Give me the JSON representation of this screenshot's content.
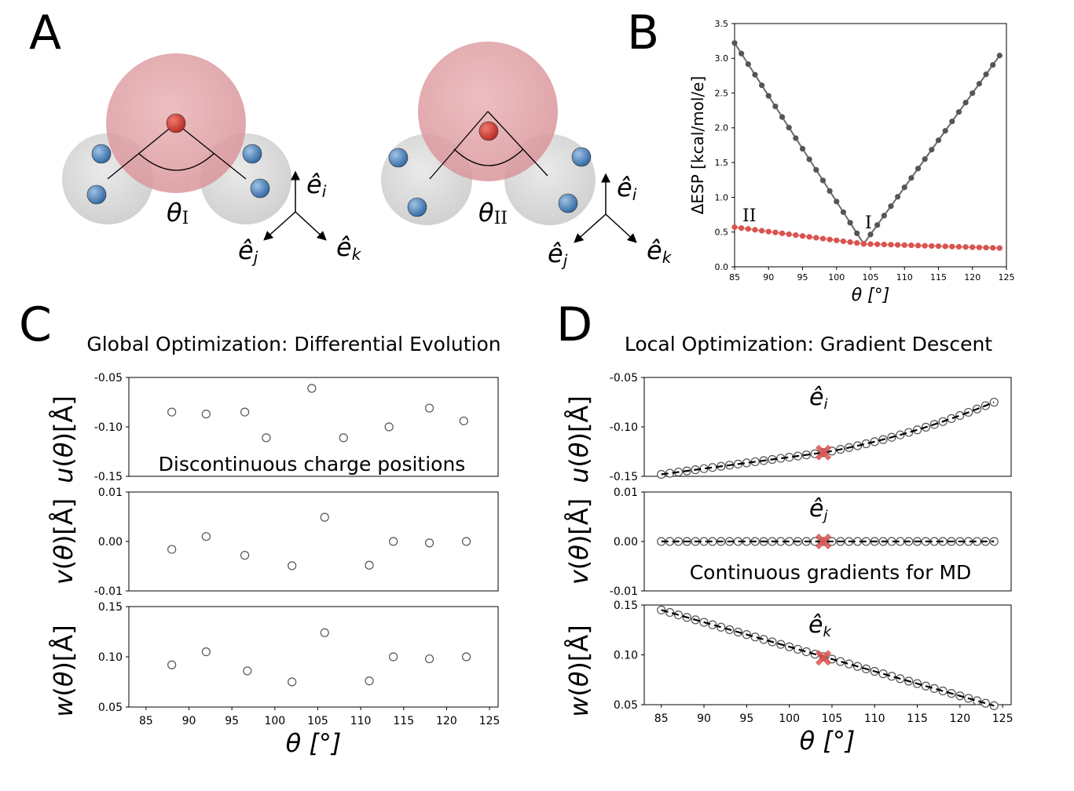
{
  "panels": {
    "a": {
      "letter": "A"
    },
    "b": {
      "letter": "B"
    },
    "c": {
      "letter": "C"
    },
    "d": {
      "letter": "D"
    }
  },
  "molecules": {
    "left_label": "θ",
    "left_sub": "I",
    "right_label": "θ",
    "right_sub": "II",
    "axis_i": "ê",
    "axis_i_sub": "i",
    "axis_j": "ê",
    "axis_j_sub": "j",
    "axis_k": "ê",
    "axis_k_sub": "k",
    "colors": {
      "oxygen": "#e3a2a6",
      "hydrogen": "#d9d9d9",
      "site_red": "#c8332c",
      "site_blue": "#3f78b4"
    }
  },
  "panel_b": {
    "ylabel": "ΔESP [kcal/mol/e]",
    "xlabel": "θ [°]",
    "label_I": "I",
    "label_II": "II"
  },
  "panel_c": {
    "title": "Global Optimization: Differential Evolution",
    "annotation": "Discontinuous charge positions",
    "xlabel": "θ [°]",
    "ylabel_u": "u(θ)[Å]",
    "ylabel_v": "v(θ)[Å]",
    "ylabel_w": "w(θ)[Å]"
  },
  "panel_d": {
    "title": "Local Optimization: Gradient Descent",
    "annotation": "Continuous gradients for MD",
    "xlabel": "θ [°]",
    "ylabel_u": "u(θ)[Å]",
    "ylabel_v": "v(θ)[Å]",
    "ylabel_w": "w(θ)[Å]",
    "label_i": "ê",
    "label_i_sub": "i",
    "label_j": "ê",
    "label_j_sub": "j",
    "label_k": "ê",
    "label_k_sub": "k"
  },
  "chart_data": [
    {
      "id": "B",
      "type": "scatter",
      "xlabel": "θ [°]",
      "ylabel": "ΔESP [kcal/mol/e]",
      "xlim": [
        85,
        125
      ],
      "ylim": [
        0,
        3.5
      ],
      "xticks": [
        "85",
        "90",
        "95",
        "100",
        "105",
        "110",
        "115",
        "120",
        "125"
      ],
      "yticks": [
        "0.0",
        "0.5",
        "1.0",
        "1.5",
        "2.0",
        "2.5",
        "3.0",
        "3.5"
      ],
      "series": [
        {
          "name": "I",
          "color": "#555555",
          "x_start": 85,
          "x_end": 124,
          "count": 40,
          "v_min_x": 104,
          "y_left": 3.22,
          "y_min": 0.33,
          "y_right": 3.04
        },
        {
          "name": "II",
          "color": "#d9534f",
          "x_start": 85,
          "x_end": 124,
          "count": 40,
          "y_left": 0.57,
          "y_mid": 0.33,
          "y_right": 0.27
        }
      ]
    },
    {
      "id": "C-u",
      "type": "scatter",
      "ylabel": "u(θ)[Å]",
      "xlim": [
        83,
        126
      ],
      "ylim": [
        -0.15,
        -0.05
      ],
      "yticks": [
        "-0.15",
        "-0.10",
        "-0.05"
      ],
      "x": [
        88,
        92,
        96.5,
        99,
        104.3,
        108,
        113.3,
        118,
        122
      ],
      "y": [
        -0.085,
        -0.087,
        -0.085,
        -0.111,
        -0.061,
        -0.111,
        -0.1,
        -0.081,
        -0.094
      ]
    },
    {
      "id": "C-v",
      "type": "scatter",
      "ylabel": "v(θ)[Å]",
      "xlim": [
        83,
        126
      ],
      "ylim": [
        -0.01,
        0.01
      ],
      "yticks": [
        "-0.01",
        "0.00",
        "0.01"
      ],
      "x": [
        88,
        92,
        96.5,
        102,
        105.8,
        111,
        113.8,
        118,
        122.3
      ],
      "y": [
        -0.0016,
        0.001,
        -0.0028,
        -0.0049,
        0.0049,
        -0.0048,
        0.0,
        -0.0003,
        0.0
      ]
    },
    {
      "id": "C-w",
      "type": "scatter",
      "ylabel": "w(θ)[Å]",
      "xlabel": "θ [°]",
      "xlim": [
        83,
        126
      ],
      "ylim": [
        0.05,
        0.15
      ],
      "yticks": [
        "0.05",
        "0.10",
        "0.15"
      ],
      "xticks": [
        "85",
        "90",
        "95",
        "100",
        "105",
        "110",
        "115",
        "120",
        "125"
      ],
      "x": [
        88,
        92,
        96.8,
        102,
        105.8,
        111,
        113.8,
        118,
        122.3
      ],
      "y": [
        0.092,
        0.105,
        0.086,
        0.075,
        0.124,
        0.076,
        0.1,
        0.098,
        0.1
      ]
    },
    {
      "id": "D-u",
      "type": "line",
      "ylabel": "u(θ)[Å]",
      "xlim": [
        83,
        126
      ],
      "ylim": [
        -0.15,
        -0.05
      ],
      "yticks": [
        "-0.15",
        "-0.10",
        "-0.05"
      ],
      "x_start": 85,
      "x_end": 124,
      "count": 40,
      "y_start": -0.148,
      "y_mid": -0.126,
      "y_end": -0.075,
      "marker_x": 104,
      "marker_y": -0.126
    },
    {
      "id": "D-v",
      "type": "line",
      "ylabel": "v(θ)[Å]",
      "xlim": [
        83,
        126
      ],
      "ylim": [
        -0.01,
        0.01
      ],
      "yticks": [
        "-0.01",
        "0.00",
        "0.01"
      ],
      "x_start": 85,
      "x_end": 124,
      "count": 40,
      "y_start": 0.0,
      "y_end": 0.0,
      "marker_x": 104,
      "marker_y": 0.0
    },
    {
      "id": "D-w",
      "type": "line",
      "ylabel": "w(θ)[Å]",
      "xlabel": "θ [°]",
      "xlim": [
        83,
        126
      ],
      "ylim": [
        0.05,
        0.15
      ],
      "yticks": [
        "0.05",
        "0.10",
        "0.15"
      ],
      "xticks": [
        "85",
        "90",
        "95",
        "100",
        "105",
        "110",
        "115",
        "120",
        "125"
      ],
      "x_start": 85,
      "x_end": 124,
      "count": 40,
      "y_start": 0.145,
      "y_end": 0.049,
      "marker_x": 104,
      "marker_y": 0.097
    }
  ]
}
